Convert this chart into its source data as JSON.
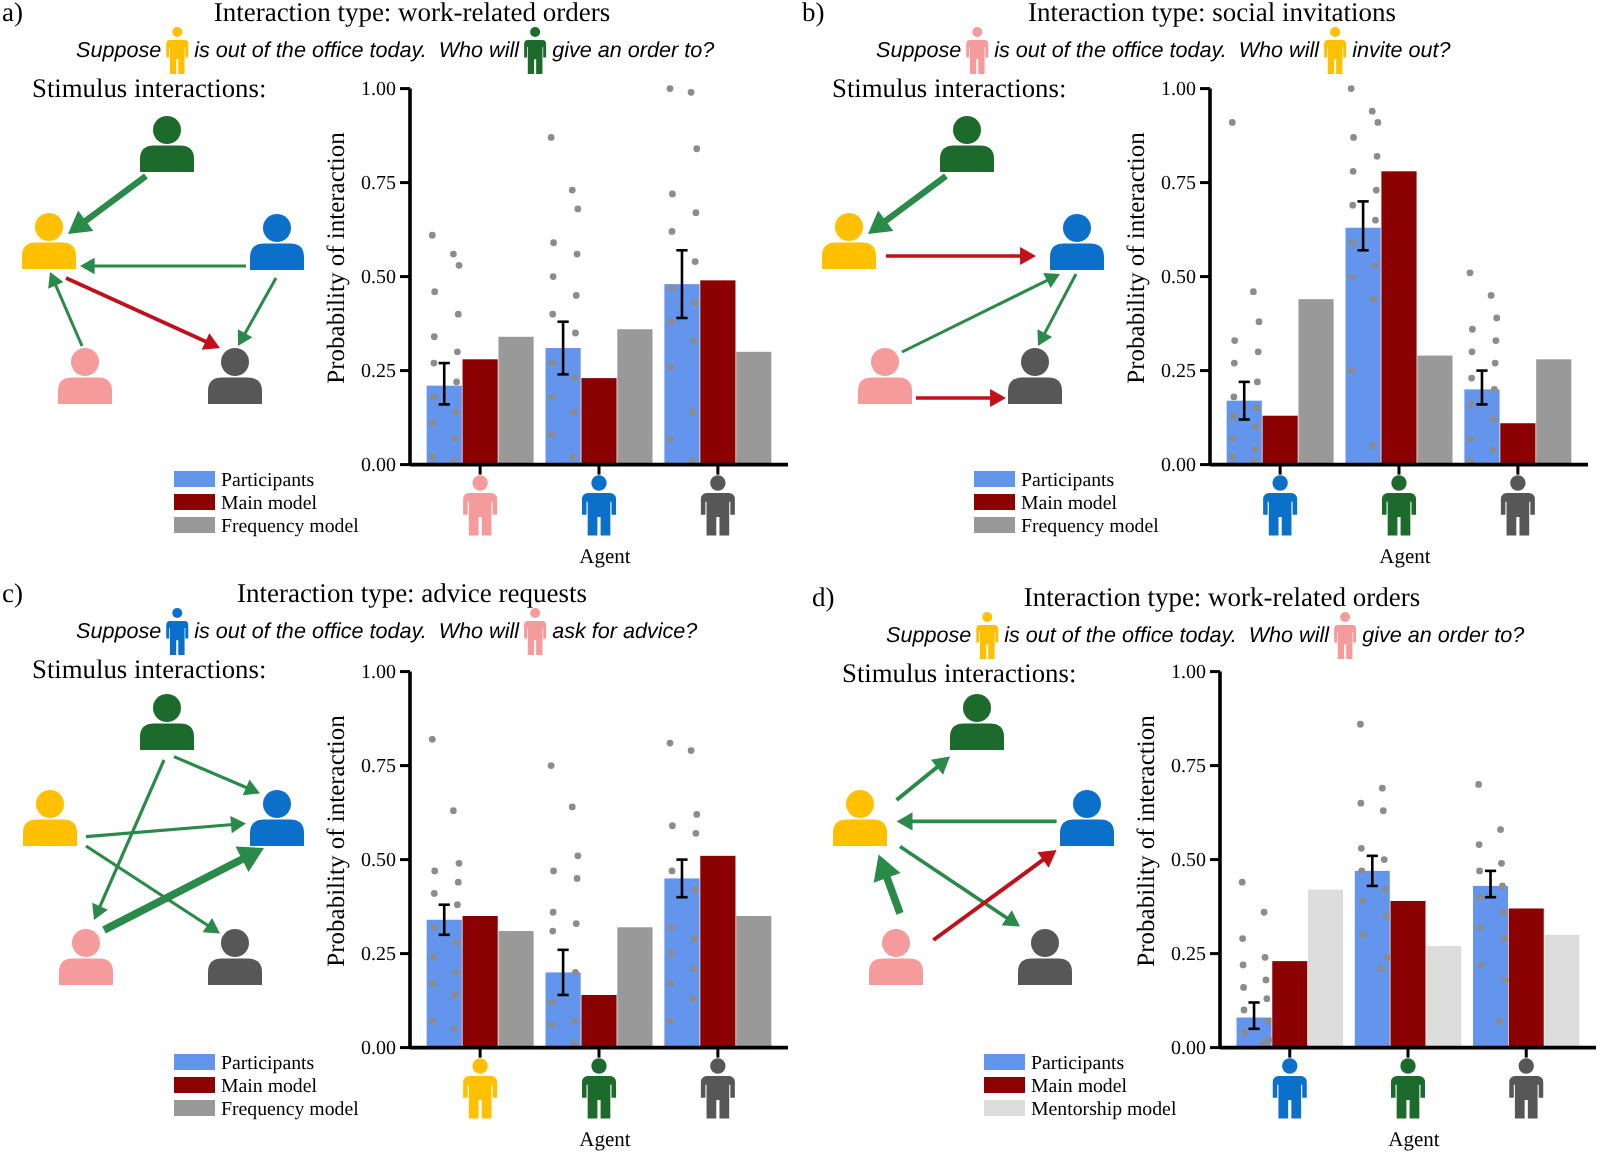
{
  "chart_data": [
    {
      "type": "bar",
      "title": "Interaction type: work-related orders",
      "xlabel": "Agent",
      "ylabel": "Probability of interaction",
      "annotations": [
        "a)",
        "Suppose",
        "is out of the office today.  Who will",
        "give an order to?",
        "Stimulus interactions:"
      ],
      "categories": [
        null,
        null,
        null
      ],
      "ylim": [
        0,
        1
      ],
      "yticks": [
        {
          "value": 0,
          "label": "0.00"
        },
        {
          "value": 0.25,
          "label": "0.25"
        },
        {
          "value": 0.5,
          "label": "0.50"
        },
        {
          "value": 0.75,
          "label": "0.75"
        },
        {
          "value": 1,
          "label": "1.00"
        }
      ],
      "legend": "bottom left",
      "marker": "circle",
      "series": [
        {
          "name": "Participants",
          "color": "#6495ed",
          "values": [
            0.21,
            0.31,
            0.48
          ],
          "errors": [
            [
              0.16,
              0.27
            ],
            [
              0.24,
              0.38
            ],
            [
              0.39,
              0.57
            ]
          ]
        },
        {
          "name": "Main model",
          "color": "#8b0000",
          "values": [
            0.28,
            0.23,
            0.49
          ]
        },
        {
          "name": "Frequency model",
          "color": "#999999",
          "values": [
            0.34,
            0.36,
            0.3
          ]
        },
        {
          "type": "scatter",
          "color": "#8c8c8c",
          "values": [
            0.61,
            0.87,
            1.0
          ]
        },
        {
          "type": "scatter",
          "color": "#8c8c8c",
          "values": [
            0.56,
            0.73,
            0.99
          ]
        },
        {
          "type": "scatter",
          "color": "#8c8c8c",
          "values": [
            0.53,
            0.68,
            0.84
          ]
        },
        {
          "type": "scatter",
          "color": "#8c8c8c",
          "values": [
            0.46,
            0.59,
            0.72
          ]
        },
        {
          "type": "scatter",
          "color": "#8c8c8c",
          "values": [
            0.4,
            0.56,
            0.67
          ]
        },
        {
          "type": "scatter",
          "color": "#8c8c8c",
          "values": [
            0.34,
            0.5,
            0.62
          ]
        },
        {
          "type": "scatter",
          "color": "#8c8c8c",
          "values": [
            0.3,
            0.45,
            0.54
          ]
        },
        {
          "type": "scatter",
          "color": "#8c8c8c",
          "values": [
            0.27,
            0.4,
            0.47
          ]
        },
        {
          "type": "scatter",
          "color": "#8c8c8c",
          "values": [
            0.22,
            0.35,
            0.43
          ]
        },
        {
          "type": "scatter",
          "color": "#8c8c8c",
          "values": [
            0.18,
            0.27,
            0.38
          ]
        },
        {
          "type": "scatter",
          "color": "#8c8c8c",
          "values": [
            0.14,
            0.23,
            0.33
          ]
        },
        {
          "type": "scatter",
          "color": "#8c8c8c",
          "values": [
            0.11,
            0.18,
            0.26
          ]
        },
        {
          "type": "scatter",
          "color": "#8c8c8c",
          "values": [
            0.07,
            0.14,
            0.14
          ]
        },
        {
          "type": "scatter",
          "color": "#8c8c8c",
          "values": [
            0.02,
            0.08,
            0.07
          ]
        },
        {
          "type": "scatter",
          "color": "#8c8c8c",
          "values": [
            0.01,
            0.02,
            0.01
          ]
        }
      ]
    },
    {
      "type": "bar",
      "title": "Interaction type: social invitations",
      "xlabel": "Agent",
      "ylabel": "Probability of interaction",
      "annotations": [
        "b)",
        "Suppose",
        "is out of the office today.  Who will",
        "invite out?",
        "Stimulus interactions:"
      ],
      "categories": [
        null,
        null,
        null
      ],
      "ylim": [
        0,
        1
      ],
      "yticks": [
        {
          "value": 0,
          "label": "0.00"
        },
        {
          "value": 0.25,
          "label": "0.25"
        },
        {
          "value": 0.5,
          "label": "0.50"
        },
        {
          "value": 0.75,
          "label": "0.75"
        },
        {
          "value": 1,
          "label": "1.00"
        }
      ],
      "legend": "bottom left",
      "marker": "circle",
      "series": [
        {
          "name": "Participants",
          "color": "#6495ed",
          "values": [
            0.17,
            0.63,
            0.2
          ],
          "errors": [
            [
              0.12,
              0.22
            ],
            [
              0.57,
              0.7
            ],
            [
              0.16,
              0.25
            ]
          ]
        },
        {
          "name": "Main model",
          "color": "#8b0000",
          "values": [
            0.13,
            0.78,
            0.11
          ]
        },
        {
          "name": "Frequency model",
          "color": "#999999",
          "values": [
            0.44,
            0.29,
            0.28
          ]
        },
        {
          "type": "scatter",
          "color": "#8c8c8c",
          "values": [
            0.91,
            1.0,
            0.51
          ]
        },
        {
          "type": "scatter",
          "color": "#8c8c8c",
          "values": [
            0.46,
            0.94,
            0.45
          ]
        },
        {
          "type": "scatter",
          "color": "#8c8c8c",
          "values": [
            0.38,
            0.91,
            0.39
          ]
        },
        {
          "type": "scatter",
          "color": "#8c8c8c",
          "values": [
            0.33,
            0.87,
            0.36
          ]
        },
        {
          "type": "scatter",
          "color": "#8c8c8c",
          "values": [
            0.3,
            0.82,
            0.33
          ]
        },
        {
          "type": "scatter",
          "color": "#8c8c8c",
          "values": [
            0.27,
            0.78,
            0.3
          ]
        },
        {
          "type": "scatter",
          "color": "#8c8c8c",
          "values": [
            0.22,
            0.73,
            0.27
          ]
        },
        {
          "type": "scatter",
          "color": "#8c8c8c",
          "values": [
            0.18,
            0.69,
            0.23
          ]
        },
        {
          "type": "scatter",
          "color": "#8c8c8c",
          "values": [
            0.15,
            0.65,
            0.2
          ]
        },
        {
          "type": "scatter",
          "color": "#8c8c8c",
          "values": [
            0.13,
            0.59,
            0.16
          ]
        },
        {
          "type": "scatter",
          "color": "#8c8c8c",
          "values": [
            0.1,
            0.53,
            0.12
          ]
        },
        {
          "type": "scatter",
          "color": "#8c8c8c",
          "values": [
            0.07,
            0.5,
            0.07
          ]
        },
        {
          "type": "scatter",
          "color": "#8c8c8c",
          "values": [
            0.04,
            0.44,
            0.04
          ]
        },
        {
          "type": "scatter",
          "color": "#8c8c8c",
          "values": [
            0.02,
            0.25,
            0.01
          ]
        },
        {
          "type": "scatter",
          "color": "#8c8c8c",
          "values": [
            0.01,
            0.05,
            null
          ]
        }
      ]
    },
    {
      "type": "bar",
      "title": "Interaction type: advice requests",
      "xlabel": "Agent",
      "ylabel": "Probability of interaction",
      "annotations": [
        "c)",
        "Suppose",
        "is out of the office today.  Who will",
        "ask for advice?",
        "Stimulus interactions:"
      ],
      "categories": [
        null,
        null,
        null
      ],
      "ylim": [
        0,
        1
      ],
      "yticks": [
        {
          "value": 0,
          "label": "0.00"
        },
        {
          "value": 0.25,
          "label": "0.25"
        },
        {
          "value": 0.5,
          "label": "0.50"
        },
        {
          "value": 0.75,
          "label": "0.75"
        },
        {
          "value": 1,
          "label": "1.00"
        }
      ],
      "legend": "bottom left",
      "marker": "circle",
      "series": [
        {
          "name": "Participants",
          "color": "#6495ed",
          "values": [
            0.34,
            0.2,
            0.45
          ],
          "errors": [
            [
              0.3,
              0.38
            ],
            [
              0.14,
              0.26
            ],
            [
              0.4,
              0.5
            ]
          ]
        },
        {
          "name": "Main model",
          "color": "#8b0000",
          "values": [
            0.35,
            0.14,
            0.51
          ]
        },
        {
          "name": "Frequency model",
          "color": "#999999",
          "values": [
            0.31,
            0.32,
            0.35
          ]
        },
        {
          "type": "scatter",
          "color": "#8c8c8c",
          "values": [
            0.82,
            0.75,
            0.81
          ]
        },
        {
          "type": "scatter",
          "color": "#8c8c8c",
          "values": [
            0.63,
            0.64,
            0.79
          ]
        },
        {
          "type": "scatter",
          "color": "#8c8c8c",
          "values": [
            0.49,
            0.51,
            0.62
          ]
        },
        {
          "type": "scatter",
          "color": "#8c8c8c",
          "values": [
            0.47,
            0.47,
            0.59
          ]
        },
        {
          "type": "scatter",
          "color": "#8c8c8c",
          "values": [
            0.44,
            0.45,
            0.57
          ]
        },
        {
          "type": "scatter",
          "color": "#8c8c8c",
          "values": [
            0.41,
            0.36,
            0.47
          ]
        },
        {
          "type": "scatter",
          "color": "#8c8c8c",
          "values": [
            0.38,
            0.33,
            0.42
          ]
        },
        {
          "type": "scatter",
          "color": "#8c8c8c",
          "values": [
            0.32,
            0.31,
            0.32
          ]
        },
        {
          "type": "scatter",
          "color": "#8c8c8c",
          "values": [
            0.28,
            0.2,
            0.29
          ]
        },
        {
          "type": "scatter",
          "color": "#8c8c8c",
          "values": [
            0.24,
            0.12,
            0.25
          ]
        },
        {
          "type": "scatter",
          "color": "#8c8c8c",
          "values": [
            0.2,
            0.07,
            0.21
          ]
        },
        {
          "type": "scatter",
          "color": "#8c8c8c",
          "values": [
            0.17,
            0.06,
            0.17
          ]
        },
        {
          "type": "scatter",
          "color": "#8c8c8c",
          "values": [
            0.14,
            0.01,
            0.13
          ]
        },
        {
          "type": "scatter",
          "color": "#8c8c8c",
          "values": [
            0.07,
            null,
            0.07
          ]
        },
        {
          "type": "scatter",
          "color": "#8c8c8c",
          "values": [
            0.05,
            null,
            null
          ]
        }
      ]
    },
    {
      "type": "bar",
      "title": "Interaction type: work-related orders",
      "xlabel": "Agent",
      "ylabel": "Probability of interaction",
      "annotations": [
        "d)",
        "Suppose",
        "is out of the office today.  Who will",
        "give an order to?",
        "Stimulus interactions:"
      ],
      "categories": [
        null,
        null,
        null
      ],
      "ylim": [
        0,
        1
      ],
      "yticks": [
        {
          "value": 0,
          "label": "0.00"
        },
        {
          "value": 0.25,
          "label": "0.25"
        },
        {
          "value": 0.5,
          "label": "0.50"
        },
        {
          "value": 0.75,
          "label": "0.75"
        },
        {
          "value": 1,
          "label": "1.00"
        }
      ],
      "legend": "bottom left",
      "marker": "circle",
      "series": [
        {
          "name": "Participants",
          "color": "#6495ed",
          "values": [
            0.08,
            0.47,
            0.43
          ],
          "errors": [
            [
              0.05,
              0.12
            ],
            [
              0.43,
              0.51
            ],
            [
              0.4,
              0.47
            ]
          ]
        },
        {
          "name": "Main model",
          "color": "#8b0000",
          "values": [
            0.23,
            0.39,
            0.37
          ]
        },
        {
          "name": "Mentorship model",
          "color": "#dcdcdc",
          "values": [
            0.42,
            0.27,
            0.3
          ]
        },
        {
          "type": "scatter",
          "color": "#8c8c8c",
          "values": [
            0.44,
            0.86,
            0.7
          ]
        },
        {
          "type": "scatter",
          "color": "#8c8c8c",
          "values": [
            0.36,
            0.69,
            0.58
          ]
        },
        {
          "type": "scatter",
          "color": "#8c8c8c",
          "values": [
            0.29,
            0.65,
            0.54
          ]
        },
        {
          "type": "scatter",
          "color": "#8c8c8c",
          "values": [
            0.24,
            0.63,
            0.49
          ]
        },
        {
          "type": "scatter",
          "color": "#8c8c8c",
          "values": [
            0.22,
            0.53,
            0.47
          ]
        },
        {
          "type": "scatter",
          "color": "#8c8c8c",
          "values": [
            0.18,
            0.5,
            0.43
          ]
        },
        {
          "type": "scatter",
          "color": "#8c8c8c",
          "values": [
            0.16,
            0.47,
            0.4
          ]
        },
        {
          "type": "scatter",
          "color": "#8c8c8c",
          "values": [
            0.13,
            0.42,
            0.36
          ]
        },
        {
          "type": "scatter",
          "color": "#8c8c8c",
          "values": [
            0.1,
            0.39,
            0.32
          ]
        },
        {
          "type": "scatter",
          "color": "#8c8c8c",
          "values": [
            0.07,
            0.35,
            0.29
          ]
        },
        {
          "type": "scatter",
          "color": "#8c8c8c",
          "values": [
            0.04,
            0.3,
            0.22
          ]
        },
        {
          "type": "scatter",
          "color": "#8c8c8c",
          "values": [
            0.02,
            0.24,
            0.18
          ]
        },
        {
          "type": "scatter",
          "color": "#8c8c8c",
          "values": [
            0.01,
            0.21,
            0.07
          ]
        }
      ]
    }
  ]
}
